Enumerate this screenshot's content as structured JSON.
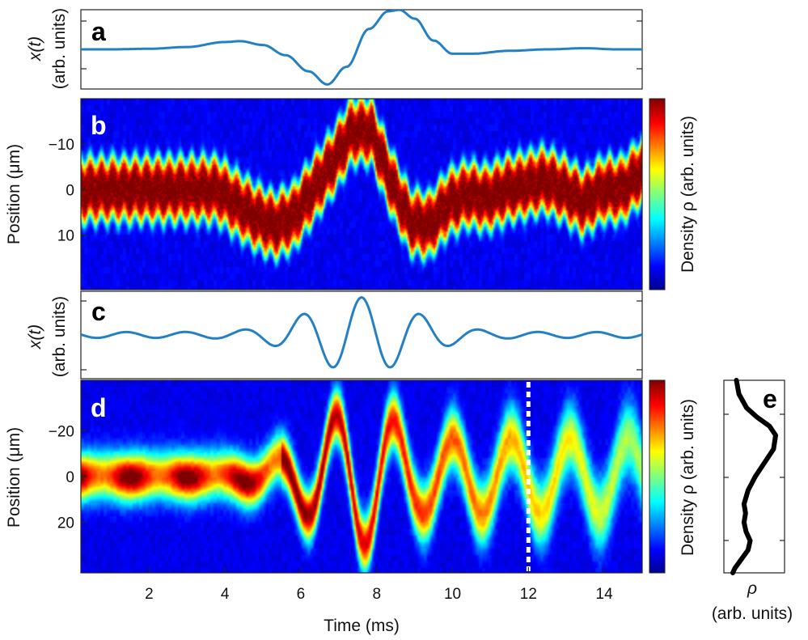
{
  "colors": {
    "curve": "#2480c4",
    "profile": "#000000",
    "dashed": "#ffffff"
  },
  "chart_data": [
    {
      "type": "line",
      "panel": "a",
      "ylabel": "x(t)",
      "ylabel_units": "(arb. units)",
      "xlim": [
        0.2,
        15
      ],
      "ylim": [
        -1.3,
        1.3
      ],
      "x": [
        0.2,
        1.0,
        2.0,
        3.0,
        4.0,
        4.4,
        5.0,
        5.6,
        6.2,
        6.7,
        7.2,
        7.8,
        8.3,
        8.6,
        9.0,
        9.5,
        10.0,
        10.5,
        11.5,
        12.5,
        13.5,
        14.3,
        15.0
      ],
      "y": [
        0.0,
        0.0,
        0.02,
        0.08,
        0.25,
        0.28,
        0.15,
        -0.2,
        -0.75,
        -1.2,
        -0.6,
        0.7,
        1.3,
        1.35,
        1.05,
        0.3,
        -0.15,
        -0.15,
        -0.05,
        0.0,
        0.04,
        0.0,
        0.0
      ]
    },
    {
      "type": "heatmap",
      "panel": "b",
      "ylabel": "Position (μm)",
      "colorbar_label": "Density ρ (arb. units)",
      "yticks": [
        "−10",
        "0",
        "10"
      ],
      "xlim": [
        0.2,
        15
      ],
      "ylim_um": [
        -20,
        22
      ],
      "center_um": [
        0,
        0,
        0,
        0,
        0,
        0,
        0,
        0,
        3,
        6,
        8,
        6,
        0,
        -6,
        -13,
        -13,
        -2,
        7,
        8,
        3,
        1,
        2,
        0,
        -1,
        -2,
        0,
        3,
        0,
        0,
        -4
      ],
      "width_um": [
        6,
        6,
        6,
        6,
        6,
        6,
        6,
        6,
        6,
        6,
        6,
        6,
        6,
        6,
        6,
        6,
        6,
        6,
        6,
        6,
        6,
        6,
        6,
        6,
        6,
        6,
        6,
        6,
        6,
        6
      ]
    },
    {
      "type": "line",
      "panel": "c",
      "ylabel": "x(t)",
      "ylabel_units": "(arb. units)",
      "xlim": [
        0.2,
        15
      ],
      "ylim": [
        -1.1,
        1.1
      ],
      "carrier_period_ms": 1.55,
      "envelope_center_ms": 7.6,
      "envelope_width_ms": 1.9
    },
    {
      "type": "heatmap",
      "panel": "d",
      "ylabel": "Position (μm)",
      "colorbar_label": "Density ρ (arb. units)",
      "yticks": [
        "−20",
        "0",
        "20"
      ],
      "xlabel": "Time (ms)",
      "xticks": [
        "2",
        "4",
        "6",
        "8",
        "10",
        "12",
        "14"
      ],
      "xlim": [
        0.2,
        15
      ],
      "ylim_um": [
        -42,
        42
      ],
      "marker_time_ms": 12
    },
    {
      "type": "line",
      "panel": "e",
      "xlabel": "ρ",
      "xlabel_units": "(arb. units)",
      "position_um": [
        -42,
        -36,
        -30,
        -26,
        -22,
        -18,
        -12,
        -6,
        0,
        6,
        12,
        16,
        20,
        24,
        28,
        32,
        36,
        40,
        42
      ],
      "density": [
        0.15,
        0.2,
        0.35,
        0.55,
        0.8,
        0.92,
        0.88,
        0.7,
        0.52,
        0.38,
        0.3,
        0.33,
        0.3,
        0.34,
        0.42,
        0.38,
        0.25,
        0.12,
        0.08
      ]
    }
  ]
}
